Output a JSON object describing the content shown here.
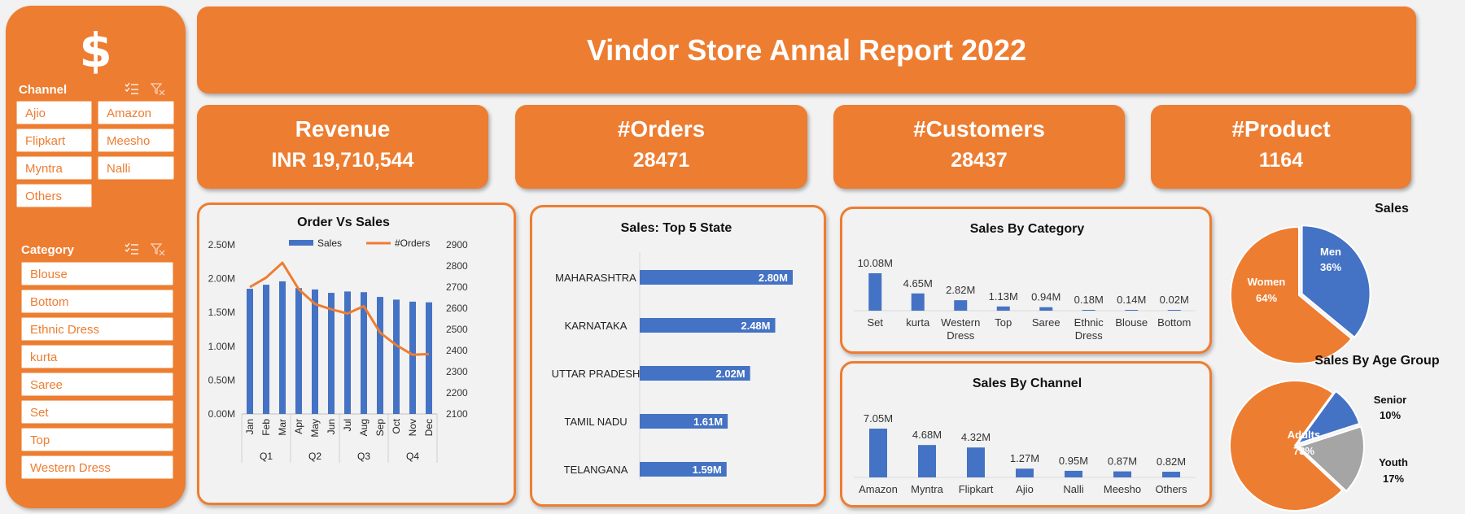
{
  "sidebar": {
    "logo": "$",
    "channel": {
      "title": "Channel",
      "items": [
        "Ajio",
        "Amazon",
        "Flipkart",
        "Meesho",
        "Myntra",
        "Nalli",
        "Others"
      ]
    },
    "category": {
      "title": "Category",
      "items": [
        "Blouse",
        "Bottom",
        "Ethnic Dress",
        "kurta",
        "Saree",
        "Set",
        "Top",
        "Western Dress"
      ]
    }
  },
  "header": {
    "title": "Vindor Store Annal Report 2022"
  },
  "kpis": [
    {
      "label": "Revenue",
      "value": "INR 19,710,544"
    },
    {
      "label": "#Orders",
      "value": "28471"
    },
    {
      "label": "#Customers",
      "value": "28437"
    },
    {
      "label": "#Product",
      "value": "1164"
    }
  ],
  "colors": {
    "orange": "#ed7d31",
    "blue": "#4472c4",
    "gray": "#a5a5a5",
    "white": "#ffffff"
  },
  "icons": [
    "dollar-icon",
    "multi-select-icon",
    "clear-filter-icon"
  ],
  "chart_data": [
    {
      "id": "order-vs-sales",
      "type": "bar",
      "title": "Order Vs Sales",
      "categories": [
        "Jan",
        "Feb",
        "Mar",
        "Apr",
        "May",
        "Jun",
        "Jul",
        "Aug",
        "Sep",
        "Oct",
        "Nov",
        "Dec"
      ],
      "quarters": [
        "Q1",
        "Q2",
        "Q3",
        "Q4"
      ],
      "series": [
        {
          "name": "Sales",
          "type": "bar",
          "axis": "left",
          "values": [
            1850000,
            1910000,
            1960000,
            1860000,
            1840000,
            1790000,
            1810000,
            1800000,
            1730000,
            1690000,
            1660000,
            1650000
          ]
        },
        {
          "name": "#Orders",
          "type": "line",
          "axis": "right",
          "values": [
            2700,
            2745,
            2815,
            2690,
            2620,
            2595,
            2575,
            2610,
            2485,
            2425,
            2380,
            2383
          ]
        }
      ],
      "y_left": {
        "min": 0,
        "max": 2500000,
        "ticks": [
          "0.00M",
          "0.50M",
          "1.00M",
          "1.50M",
          "2.00M",
          "2.50M"
        ]
      },
      "y_right": {
        "min": 2100,
        "max": 2900,
        "ticks": [
          "2100",
          "2200",
          "2300",
          "2400",
          "2500",
          "2600",
          "2700",
          "2800",
          "2900"
        ]
      },
      "legend": "top"
    },
    {
      "id": "top5-state",
      "type": "bar",
      "orientation": "horizontal",
      "title": "Sales: Top 5 State",
      "categories": [
        "MAHARASHTRA",
        "KARNATAKA",
        "UTTAR PRADESH",
        "TAMIL NADU",
        "TELANGANA"
      ],
      "values": [
        2.8,
        2.48,
        2.02,
        1.61,
        1.59
      ],
      "labels": [
        "2.80M",
        "2.48M",
        "2.02M",
        "1.61M",
        "1.59M"
      ]
    },
    {
      "id": "sales-by-category",
      "type": "bar",
      "title": "Sales By Category",
      "categories": [
        "Set",
        "kurta",
        "Western Dress",
        "Top",
        "Saree",
        "Ethnic Dress",
        "Blouse",
        "Bottom"
      ],
      "values": [
        10.08,
        4.65,
        2.82,
        1.13,
        0.94,
        0.18,
        0.14,
        0.02
      ],
      "labels": [
        "10.08M",
        "4.65M",
        "2.82M",
        "1.13M",
        "0.94M",
        "0.18M",
        "0.14M",
        "0.02M"
      ]
    },
    {
      "id": "sales-by-channel",
      "type": "bar",
      "title": "Sales By Channel",
      "categories": [
        "Amazon",
        "Myntra",
        "Flipkart",
        "Ajio",
        "Nalli",
        "Meesho",
        "Others"
      ],
      "values": [
        7.05,
        4.68,
        4.32,
        1.27,
        0.95,
        0.87,
        0.82
      ],
      "labels": [
        "7.05M",
        "4.68M",
        "4.32M",
        "1.27M",
        "0.95M",
        "0.87M",
        "0.82M"
      ]
    },
    {
      "id": "sales-gender",
      "type": "pie",
      "title": "Sales",
      "slices": [
        {
          "label": "Men",
          "value": 36,
          "text": "36%"
        },
        {
          "label": "Women",
          "value": 64,
          "text": "64%"
        }
      ]
    },
    {
      "id": "sales-age",
      "type": "pie",
      "title": "Sales By Age Group",
      "slices": [
        {
          "label": "Senior",
          "value": 10,
          "text": "10%"
        },
        {
          "label": "Youth",
          "value": 17,
          "text": "17%"
        },
        {
          "label": "Adults",
          "value": 73,
          "text": "73%"
        }
      ]
    }
  ]
}
